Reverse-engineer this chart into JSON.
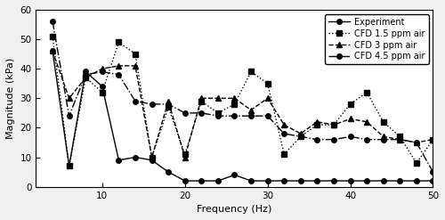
{
  "title": "",
  "xlabel": "Frequency (Hz)",
  "ylabel": "Magnitude (kPa)",
  "xlim": [
    2,
    50
  ],
  "ylim": [
    0,
    60
  ],
  "xticks": [
    10,
    20,
    30,
    40,
    50
  ],
  "yticks": [
    0,
    10,
    20,
    30,
    40,
    50,
    60
  ],
  "experiment": {
    "x": [
      4,
      6,
      8,
      10,
      12,
      14,
      16,
      18,
      20,
      22,
      24,
      26,
      28,
      30,
      32,
      34,
      36,
      38,
      40,
      42,
      44,
      46,
      48,
      50
    ],
    "y": [
      46,
      7,
      39,
      34,
      9,
      10,
      9,
      5,
      2,
      2,
      2,
      4,
      2,
      2,
      2,
      2,
      2,
      2,
      2,
      2,
      2,
      2,
      2,
      2
    ],
    "label": "Experiment",
    "linestyle": "-",
    "marker": "o",
    "color": "black",
    "linewidth": 1.0,
    "markersize": 4
  },
  "cfd_1_5": {
    "x": [
      4,
      6,
      8,
      10,
      12,
      14,
      16,
      18,
      20,
      22,
      24,
      26,
      28,
      30,
      32,
      34,
      36,
      38,
      40,
      42,
      44,
      46,
      48,
      50
    ],
    "y": [
      51,
      7,
      37,
      32,
      49,
      45,
      10,
      27,
      11,
      29,
      25,
      28,
      39,
      35,
      11,
      17,
      21,
      21,
      28,
      32,
      22,
      17,
      8,
      16
    ],
    "label": "CFD 1.5 ppm air",
    "linestyle": ":",
    "marker": "s",
    "color": "black",
    "linewidth": 1.0,
    "markersize": 4
  },
  "cfd_3": {
    "x": [
      4,
      6,
      8,
      10,
      12,
      14,
      16,
      18,
      20,
      22,
      24,
      26,
      28,
      30,
      32,
      34,
      36,
      38,
      40,
      42,
      44,
      46,
      48,
      50
    ],
    "y": [
      46,
      30,
      37,
      40,
      41,
      41,
      10,
      29,
      10,
      30,
      30,
      30,
      26,
      30,
      21,
      18,
      22,
      21,
      23,
      22,
      17,
      16,
      15,
      16
    ],
    "label": "CFD 3 ppm air",
    "linestyle": "--",
    "marker": "^",
    "color": "black",
    "linewidth": 1.0,
    "markersize": 4
  },
  "cfd_4_5": {
    "x": [
      4,
      6,
      8,
      10,
      12,
      14,
      16,
      18,
      20,
      22,
      24,
      26,
      28,
      30,
      32,
      34,
      36,
      38,
      40,
      42,
      44,
      46,
      48,
      50
    ],
    "y": [
      56,
      24,
      38,
      39,
      38,
      29,
      28,
      28,
      25,
      25,
      24,
      24,
      24,
      24,
      18,
      17,
      16,
      16,
      17,
      16,
      16,
      16,
      15,
      5
    ],
    "label": "CFD 4.5 ppm air",
    "linestyle": "-.",
    "marker": "o",
    "color": "black",
    "linewidth": 1.0,
    "markersize": 4
  },
  "legend_fontsize": 7,
  "axis_fontsize": 8,
  "tick_fontsize": 7.5,
  "background_color": "#f0f0f0"
}
